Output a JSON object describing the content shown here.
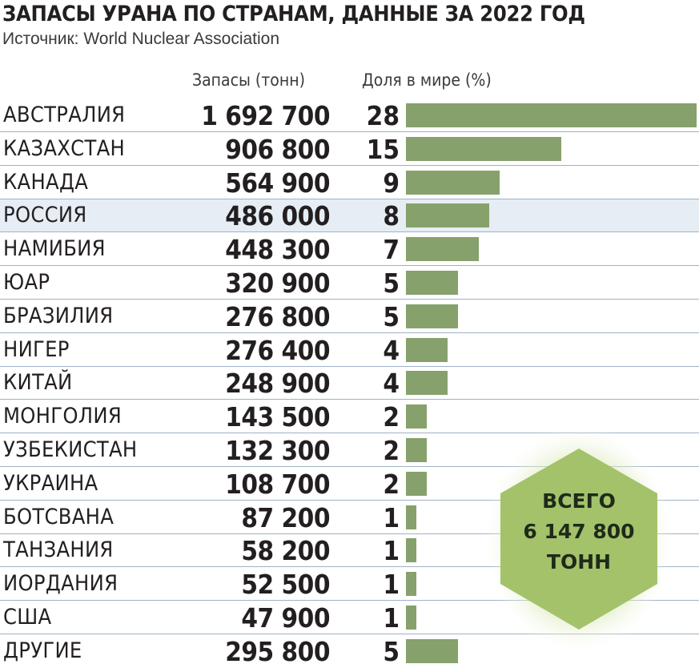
{
  "title": "ЗАПАСЫ УРАНА ПО СТРАНАМ, ДАННЫЕ ЗА 2022 ГОД",
  "source": "Источник: World Nuclear Association",
  "columns": {
    "reserves": "Запасы (тонн)",
    "share": "Доля в мире (%)"
  },
  "total": {
    "line1": "ВСЕГО",
    "line2": "6 147 800",
    "line3": "ТОНН"
  },
  "colors": {
    "bar": "#86a16b",
    "highlight_row": "#e6edf5",
    "divider": "#9fb2c5",
    "hex_fill": "#a3c26a"
  },
  "chart_data": {
    "type": "bar",
    "orientation": "horizontal",
    "title": "ЗАПАСЫ УРАНА ПО СТРАНАМ, ДАННЫЕ ЗА 2022 ГОД",
    "highlighted": "РОССИЯ",
    "rows": [
      {
        "country": "АВСТРАЛИЯ",
        "reserves": "1 692 700",
        "share": 28
      },
      {
        "country": "КАЗАХСТАН",
        "reserves": "906 800",
        "share": 15
      },
      {
        "country": "КАНАДА",
        "reserves": "564 900",
        "share": 9
      },
      {
        "country": "РОССИЯ",
        "reserves": "486 000",
        "share": 8
      },
      {
        "country": "НАМИБИЯ",
        "reserves": "448 300",
        "share": 7
      },
      {
        "country": "ЮАР",
        "reserves": "320 900",
        "share": 5
      },
      {
        "country": "БРАЗИЛИЯ",
        "reserves": "276 800",
        "share": 5
      },
      {
        "country": "НИГЕР",
        "reserves": "276 400",
        "share": 4
      },
      {
        "country": "КИТАЙ",
        "reserves": "248 900",
        "share": 4
      },
      {
        "country": "МОНГОЛИЯ",
        "reserves": "143 500",
        "share": 2
      },
      {
        "country": "УЗБЕКИСТАН",
        "reserves": "132 300",
        "share": 2
      },
      {
        "country": "УКРАИНА",
        "reserves": "108 700",
        "share": 2
      },
      {
        "country": "БОТСВАНА",
        "reserves": "87 200",
        "share": 1
      },
      {
        "country": "ТАНЗАНИЯ",
        "reserves": "58 200",
        "share": 1
      },
      {
        "country": "ИОРДАНИЯ",
        "reserves": "52 500",
        "share": 1
      },
      {
        "country": "США",
        "reserves": "47 900",
        "share": 1
      },
      {
        "country": "ДРУГИЕ",
        "reserves": "295 800",
        "share": 5
      }
    ]
  }
}
